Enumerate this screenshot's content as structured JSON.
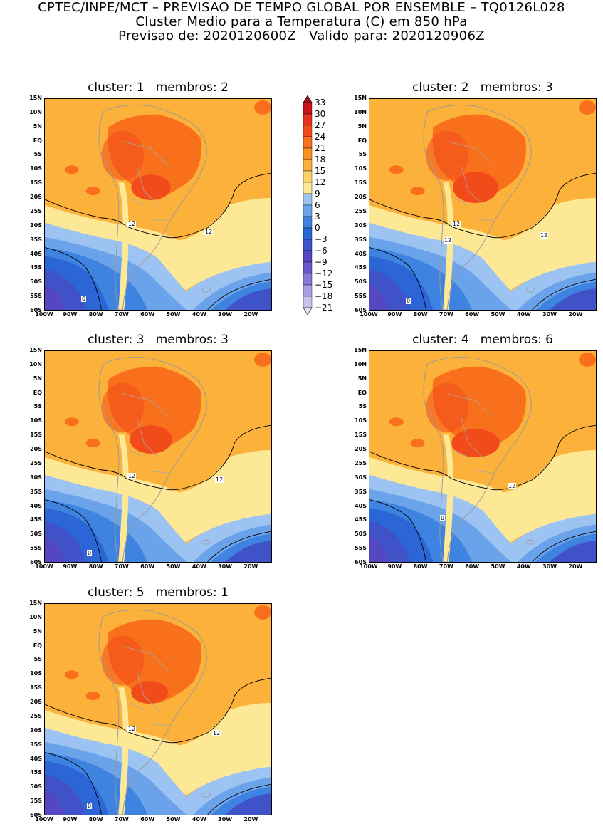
{
  "header": {
    "line1": "CPTEC/INPE/MCT – PREVISAO DE TEMPO GLOBAL POR ENSEMBLE – TQ0126L028",
    "line2": "Cluster Medio para a Temperatura (C) em 850 hPa",
    "line3": "Previsao de: 2020120600Z   Valido para: 2020120906Z"
  },
  "axes": {
    "lat_labels": [
      "15N",
      "10N",
      "5N",
      "EQ",
      "5S",
      "10S",
      "15S",
      "20S",
      "25S",
      "30S",
      "35S",
      "40S",
      "45S",
      "50S",
      "55S",
      "60S"
    ],
    "lon_labels": [
      "100W",
      "90W",
      "80W",
      "70W",
      "60W",
      "50W",
      "40W",
      "30W",
      "20W"
    ]
  },
  "colorbar": {
    "labels": [
      "33",
      "30",
      "27",
      "24",
      "21",
      "18",
      "15",
      "12",
      "9",
      "6",
      "3",
      "0",
      "−3",
      "−6",
      "−9",
      "−12",
      "−15",
      "−18",
      "−21"
    ],
    "colors": [
      "#a50f15",
      "#c8141b",
      "#e8301f",
      "#f24b1a",
      "#f8701c",
      "#f99222",
      "#fbb13a",
      "#fcd36a",
      "#fde896",
      "#9dc3f2",
      "#6aa3ea",
      "#3f83e0",
      "#2c66d6",
      "#3f52c8",
      "#5547c2",
      "#6b55cc",
      "#8a78d8",
      "#ac9de4",
      "#cbc1ef",
      "#e8e2f8"
    ]
  },
  "panels": [
    {
      "title": "cluster: 1   membros: 2",
      "contour_labels": [
        "12",
        "12",
        "0"
      ]
    },
    {
      "title": "cluster: 2   membros: 3",
      "contour_labels": [
        "12",
        "12",
        "12",
        "0"
      ]
    },
    {
      "title": "cluster: 3   membros: 3",
      "contour_labels": [
        "12",
        "12",
        "0"
      ]
    },
    {
      "title": "cluster: 4   membros: 6",
      "contour_labels": [
        "12",
        "0"
      ]
    },
    {
      "title": "cluster: 5   membros: 1",
      "contour_labels": [
        "12",
        "12",
        "0"
      ]
    }
  ]
}
